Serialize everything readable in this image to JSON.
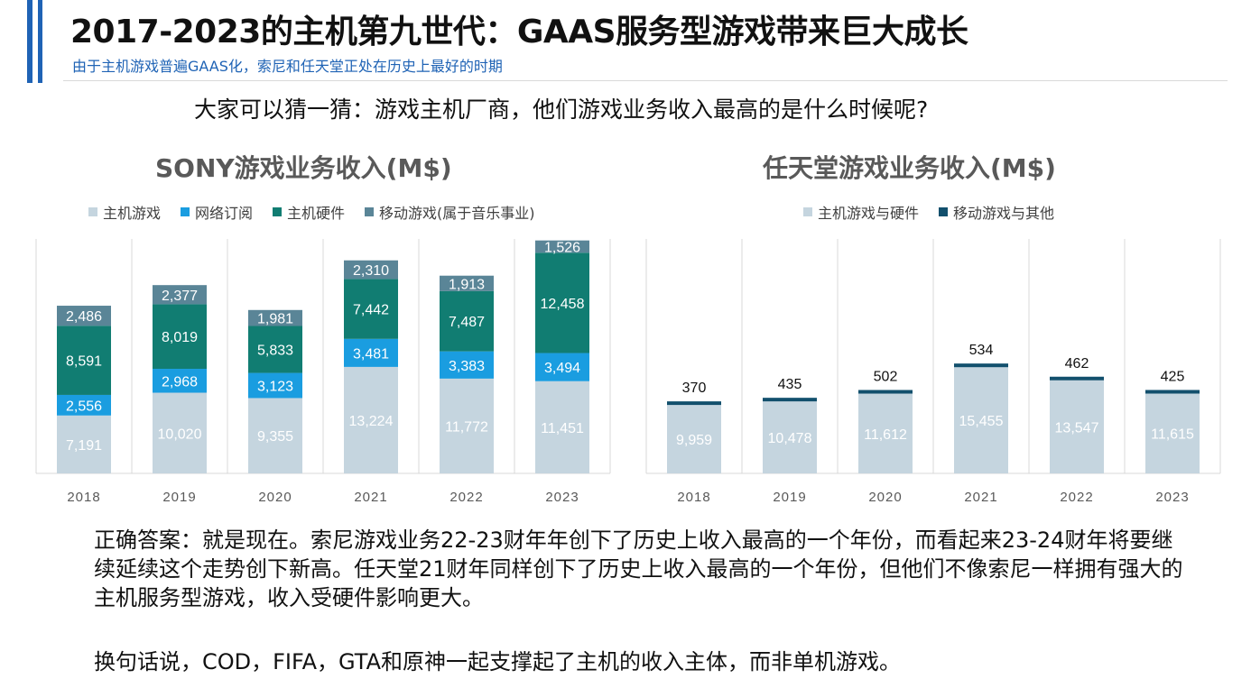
{
  "header": {
    "title": "2017-2023的主机第九世代：GAAS服务型游戏带来巨大成长",
    "subtitle": "由于主机游戏普遍GAAS化，索尼和任天堂正处在历史上最好的时期"
  },
  "question": "大家可以猜一猜：游戏主机厂商，他们游戏业务收入最高的是什么时候呢?",
  "answer": {
    "paragraph1": "正确答案：就是现在。索尼游戏业务22-23财年年创下了历史上收入最高的一个年份，而看起来23-24财年将要继续延续这个走势创下新高。任天堂21财年同样创下了历史上收入最高的一个年份，但他们不像索尼一样拥有强大的主机服务型游戏，收入受硬件影响更大。",
    "paragraph2": "换句话说，COD，FIFA，GTA和原神一起支撑起了主机的收入主体，而非单机游戏。"
  },
  "chart_data": [
    {
      "type": "bar",
      "stacked": true,
      "title": "SONY游戏业务收入(M$)",
      "categories": [
        "2018",
        "2019",
        "2020",
        "2021",
        "2022",
        "2023"
      ],
      "series": [
        {
          "name": "主机游戏",
          "color": "#c5d5df",
          "values": [
            7191,
            10020,
            9355,
            13224,
            11772,
            11451
          ],
          "labels": [
            "7,191",
            "10,020",
            "9,355",
            "13,224",
            "11,772",
            "11,451"
          ]
        },
        {
          "name": "网络订阅",
          "color": "#1a9de0",
          "values": [
            2556,
            2968,
            3123,
            3481,
            3383,
            3494
          ],
          "labels": [
            "2,556",
            "2,968",
            "3,123",
            "3,481",
            "3,383",
            "3,494"
          ]
        },
        {
          "name": "主机硬件",
          "color": "#117d72",
          "values": [
            8591,
            8019,
            5833,
            7442,
            7487,
            12458
          ],
          "labels": [
            "8,591",
            "8,019",
            "5,833",
            "7,442",
            "7,487",
            "12,458"
          ]
        },
        {
          "name": "移动游戏(属于音乐事业)",
          "color": "#5a8597",
          "values": [
            2486,
            2377,
            1981,
            2310,
            1913,
            1526
          ],
          "labels": [
            "2,486",
            "2,377",
            "1,981",
            "2,310",
            "1,913",
            "1,526"
          ]
        }
      ],
      "grid": "vertical"
    },
    {
      "type": "bar",
      "stacked": true,
      "title": "任天堂游戏业务收入(M$)",
      "categories": [
        "2018",
        "2019",
        "2020",
        "2021",
        "2022",
        "2023"
      ],
      "series": [
        {
          "name": "主机游戏与硬件",
          "color": "#c5d5df",
          "values": [
            9959,
            10478,
            11612,
            15455,
            13547,
            11615
          ],
          "labels": [
            "9,959",
            "10,478",
            "11,612",
            "15,455",
            "13,547",
            "11,615"
          ]
        },
        {
          "name": "移动游戏与其他",
          "color": "#12506d",
          "values": [
            370,
            435,
            502,
            534,
            462,
            425
          ],
          "labels": [
            "370",
            "435",
            "502",
            "534",
            "462",
            "425"
          ]
        }
      ],
      "grid": "vertical"
    }
  ]
}
